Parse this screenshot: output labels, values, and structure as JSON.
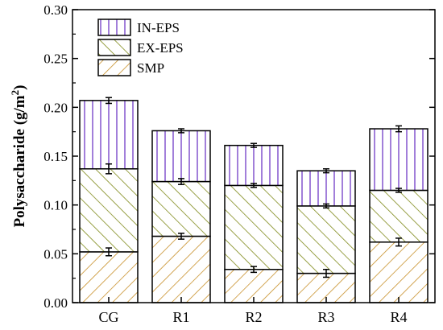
{
  "chart_data": {
    "type": "bar",
    "stacked": true,
    "categories": [
      "CG",
      "R1",
      "R2",
      "R3",
      "R4"
    ],
    "series": [
      {
        "name": "SMP",
        "values": [
          0.052,
          0.068,
          0.034,
          0.03,
          0.062
        ],
        "errors": [
          0.004,
          0.003,
          0.003,
          0.004,
          0.004
        ],
        "color": "#c8902a",
        "pattern": "diag-forward"
      },
      {
        "name": "EX-EPS",
        "values": [
          0.085,
          0.056,
          0.086,
          0.069,
          0.053
        ],
        "errors": [
          0.005,
          0.003,
          0.002,
          0.002,
          0.002
        ],
        "color": "#7f8a1a",
        "pattern": "diag-back"
      },
      {
        "name": "IN-EPS",
        "values": [
          0.07,
          0.052,
          0.041,
          0.036,
          0.063
        ],
        "errors": [
          0.003,
          0.002,
          0.002,
          0.002,
          0.003
        ],
        "color": "#8a5fd0",
        "pattern": "vertical"
      }
    ],
    "ylabel": "Polysaccharide (g/m",
    "ylabel_sup": "2",
    "ylabel_close": ")",
    "ylim": [
      0,
      0.3
    ],
    "yticks": [
      "0.00",
      "0.05",
      "0.10",
      "0.15",
      "0.20",
      "0.25",
      "0.30"
    ],
    "legend": [
      "IN-EPS",
      "EX-EPS",
      "SMP"
    ],
    "legend_position": "top-left",
    "grid": false
  }
}
